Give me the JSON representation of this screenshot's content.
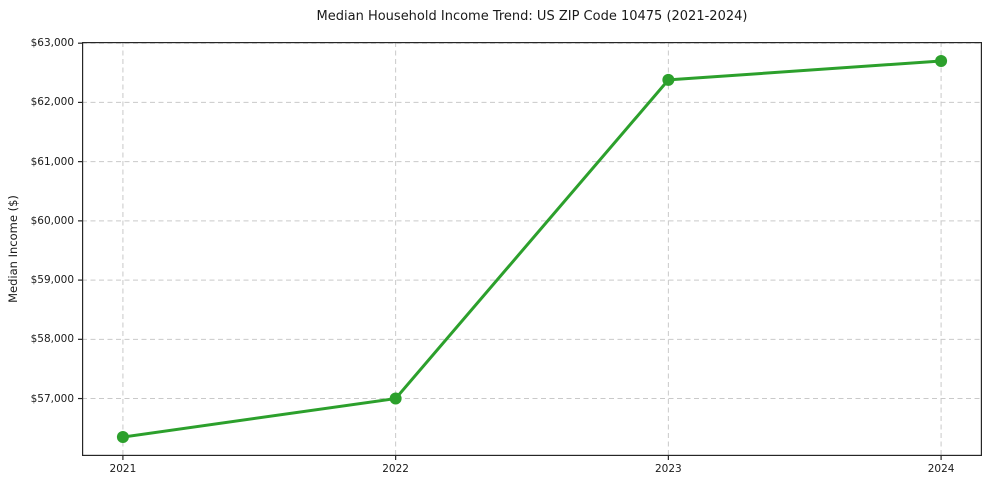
{
  "chart_data": {
    "type": "line",
    "title": "Median Household Income Trend: US ZIP Code 10475 (2021-2024)",
    "xlabel": "",
    "ylabel": "Median Income ($)",
    "x": [
      2021,
      2022,
      2023,
      2024
    ],
    "x_tick_labels": [
      "2021",
      "2022",
      "2023",
      "2024"
    ],
    "values": [
      56350,
      57000,
      62380,
      62700
    ],
    "y_ticks": [
      57000,
      58000,
      59000,
      60000,
      61000,
      62000,
      63000
    ],
    "y_tick_labels": [
      "$57,000",
      "$58,000",
      "$59,000",
      "$60,000",
      "$61,000",
      "$62,000",
      "$63,000"
    ],
    "xlim": [
      2020.85,
      2024.15
    ],
    "ylim": [
      56030,
      63020
    ],
    "grid": true,
    "grid_style": "dashed",
    "legend": "none",
    "line_color": "#2ca02c",
    "marker": "circle",
    "grid_color": "#c9c9c9",
    "axis_color": "#262626",
    "text_color": "#1a1a1a",
    "background_color": "#ffffff"
  }
}
